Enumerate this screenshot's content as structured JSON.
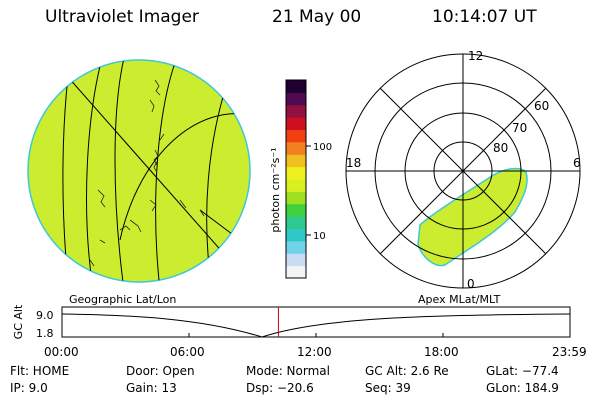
{
  "header": {
    "title": "Ultraviolet Imager",
    "date": "21 May 00",
    "time": "10:14:07 UT"
  },
  "geo_panel": {
    "label": "Geographic Lat/Lon"
  },
  "polar_panel": {
    "label": "Apex MLat/MLT",
    "mlt_labels": [
      "12",
      "18",
      "6",
      "0"
    ],
    "lat_labels": [
      "60",
      "70",
      "80"
    ]
  },
  "colorbar": {
    "unit_label": "photon cm⁻²s⁻¹",
    "ticks": [
      "100",
      "10"
    ],
    "colors": [
      "#f4f4f4",
      "#c8dcf4",
      "#6fd4e8",
      "#2ec8c8",
      "#2ec890",
      "#40d040",
      "#a0e020",
      "#d8f020",
      "#f0f020",
      "#f0c020",
      "#f08020",
      "#f04010",
      "#d01020",
      "#901040",
      "#500850",
      "#200030"
    ]
  },
  "altitude_strip": {
    "axis_label": "GC Alt",
    "y_max": "9.0",
    "y_min": "1.8",
    "time_ticks": [
      "00:00",
      "06:00",
      "12:00",
      "18:00",
      "23:59"
    ],
    "current_time_fraction": 0.426,
    "marker_color": "#cc0000"
  },
  "info": {
    "flt": "Flt: HOME",
    "ip": "IP:  9.0",
    "door": "Door: Open",
    "gain": "Gain: 13",
    "mode": "Mode: Normal",
    "dsp": "Dsp:  −20.6",
    "gc_alt": "GC Alt: 2.6 Re",
    "seq": "Seq: 39",
    "glat": "GLat: −77.4",
    "glon": "GLon: 184.9"
  },
  "colors": {
    "image_fill": "#ccec30",
    "image_edge": "#3cc8d8"
  }
}
